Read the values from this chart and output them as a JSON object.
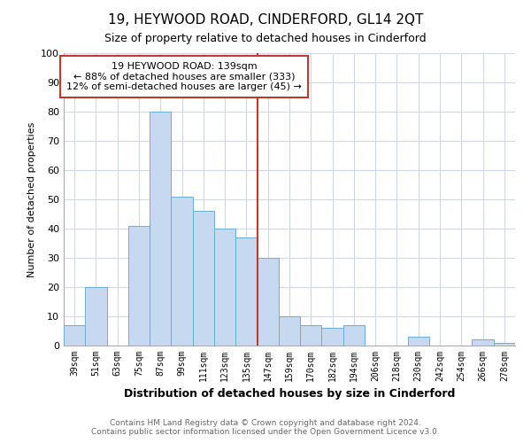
{
  "title": "19, HEYWOOD ROAD, CINDERFORD, GL14 2QT",
  "subtitle": "Size of property relative to detached houses in Cinderford",
  "xlabel": "Distribution of detached houses by size in Cinderford",
  "ylabel": "Number of detached properties",
  "bar_labels": [
    "39sqm",
    "51sqm",
    "63sqm",
    "75sqm",
    "87sqm",
    "99sqm",
    "111sqm",
    "123sqm",
    "135sqm",
    "147sqm",
    "159sqm",
    "170sqm",
    "182sqm",
    "194sqm",
    "206sqm",
    "218sqm",
    "230sqm",
    "242sqm",
    "254sqm",
    "266sqm",
    "278sqm"
  ],
  "bar_values": [
    7,
    20,
    0,
    41,
    80,
    51,
    46,
    40,
    37,
    30,
    10,
    7,
    6,
    7,
    0,
    0,
    3,
    0,
    0,
    2,
    1
  ],
  "bar_color": "#c6d9f1",
  "bar_edge_color": "#6baed6",
  "vline_index": 8,
  "vline_color": "#c0392b",
  "annotation_title": "19 HEYWOOD ROAD: 139sqm",
  "annotation_line1": "← 88% of detached houses are smaller (333)",
  "annotation_line2": "12% of semi-detached houses are larger (45) →",
  "annotation_box_color": "white",
  "annotation_box_edge": "#c0392b",
  "ylim": [
    0,
    100
  ],
  "yticks": [
    0,
    10,
    20,
    30,
    40,
    50,
    60,
    70,
    80,
    90,
    100
  ],
  "grid_color": "#d0d8e8",
  "footer1": "Contains HM Land Registry data © Crown copyright and database right 2024.",
  "footer2": "Contains public sector information licensed under the Open Government Licence v3.0."
}
